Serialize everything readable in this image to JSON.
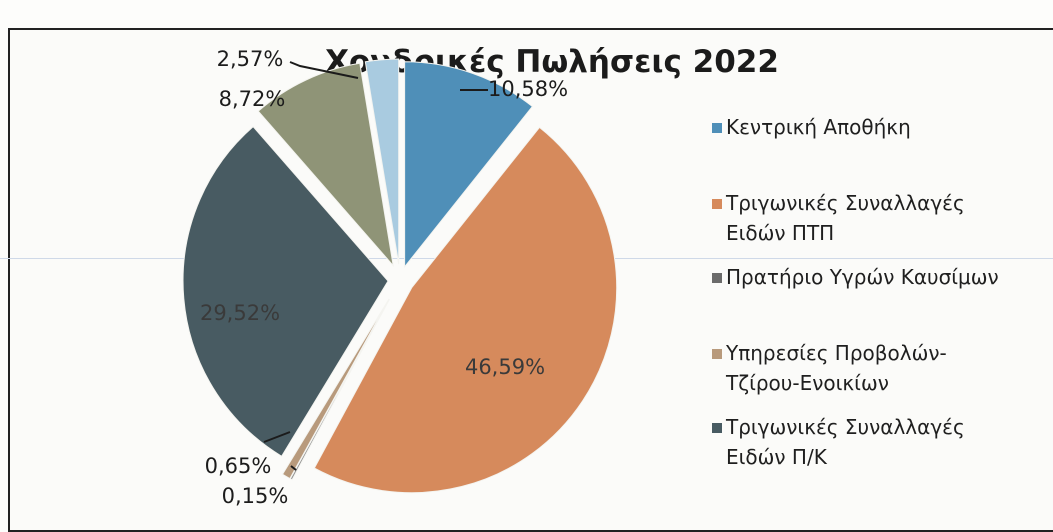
{
  "chart_data": {
    "type": "pie",
    "title": "Χονδρικές Πωλήσεις 2022",
    "slices": [
      {
        "label": "Κεντρική Αποθήκη",
        "value": 10.58,
        "value_label": "10,58%",
        "color": "#4f8fb8"
      },
      {
        "label": "Τριγωνικές Συναλλαγές Ειδών ΠΤΠ",
        "value": 46.59,
        "value_label": "46,59%",
        "color": "#d68a5c"
      },
      {
        "label": "Πρατήριο Υγρών Καυσίμων",
        "value": 0.15,
        "value_label": "0,15%",
        "color": "#8d8d8d"
      },
      {
        "label": "Υπηρεσίες Προβολών-Τζίρου-Ενοικίων",
        "value": 0.65,
        "value_label": "0,65%",
        "color": "#b89a7c"
      },
      {
        "label": "Τριγωνικές Συναλλαγές Ειδών Π/Κ",
        "value": 29.52,
        "value_label": "29,52%",
        "color": "#485b62"
      },
      {
        "label": "",
        "value": 8.72,
        "value_label": "8,72%",
        "color": "#8f9477"
      },
      {
        "label": "",
        "value": 2.57,
        "value_label": "2,57%",
        "color": "#a9cbe0"
      }
    ],
    "legend": {
      "placement": "right",
      "items": [
        {
          "text": "Κεντρική Αποθήκη",
          "color": "#4f8fb8"
        },
        {
          "text": "Τριγωνικές Συναλλαγές\nΕιδών  ΠΤΠ",
          "color": "#d68a5c"
        },
        {
          "text": "Πρατήριο Υγρών Καυσίμων",
          "color": "#6b6b6b"
        },
        {
          "text": "Υπηρεσίες Προβολών-\nΤζίρου-Ενοικίων",
          "color": "#b89a7c"
        },
        {
          "text": "Τριγωνικές Συναλλαγές\nΕιδών Π/Κ",
          "color": "#485b62"
        }
      ]
    }
  }
}
